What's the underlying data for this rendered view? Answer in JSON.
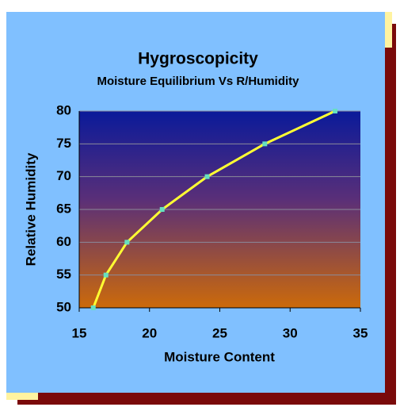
{
  "chart_data": {
    "type": "line",
    "title": "Hygroscopicity",
    "subtitle": "Moisture Equilibrium Vs R/Humidity",
    "x_label": "Moisture Content",
    "y_label": "Relative Humidity",
    "series": [
      {
        "name": "Relative Humidity",
        "color": "#ffff33",
        "marker_color": "#66e0c0",
        "x": [
          16.0,
          16.9,
          18.4,
          20.9,
          24.1,
          28.2,
          33.2
        ],
        "values": [
          50,
          55,
          60,
          65,
          70,
          75,
          80
        ]
      }
    ],
    "xlim": [
      15,
      35
    ],
    "xticks": [
      15,
      20,
      25,
      30,
      35
    ],
    "ylim": [
      50,
      80
    ],
    "yticks": [
      50,
      55,
      60,
      65,
      70,
      75,
      80
    ],
    "grid": true
  }
}
